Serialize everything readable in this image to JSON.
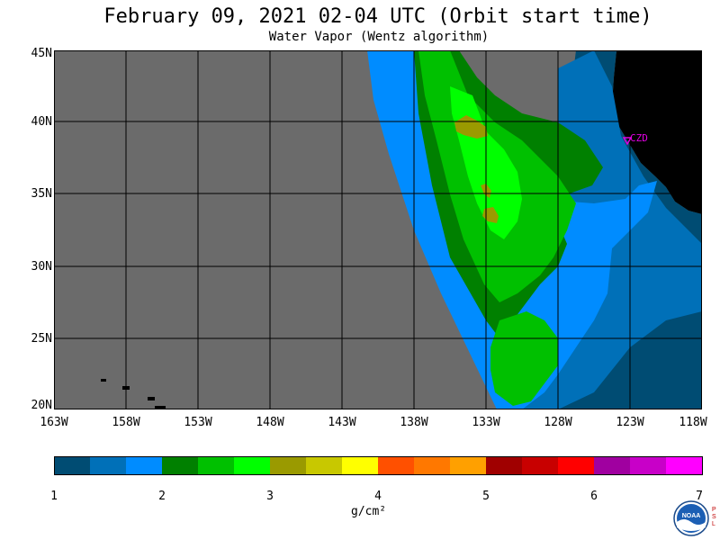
{
  "title": "February 09, 2021  02-04 UTC  (Orbit start time)",
  "subtitle": "Water Vapor (Wentz algorithm)",
  "map": {
    "lat_labels": [
      "45N",
      "40N",
      "35N",
      "30N",
      "25N",
      "20N"
    ],
    "lon_labels": [
      "163W",
      "158W",
      "153W",
      "148W",
      "143W",
      "138W",
      "133W",
      "128W",
      "123W",
      "118W"
    ],
    "station_label": "CZD",
    "station_color": "#e000e0",
    "no_data_color": "#6b6b6b",
    "land_color": "#000000"
  },
  "colorbar": {
    "colors": [
      "#004c73",
      "#0070b8",
      "#008cff",
      "#008000",
      "#00c000",
      "#00ff00",
      "#9a9a00",
      "#c8c800",
      "#ffff00",
      "#ff5000",
      "#ff7800",
      "#ffa000",
      "#a00000",
      "#c80000",
      "#ff0000",
      "#a000a0",
      "#c800c8",
      "#ff00ff"
    ],
    "ticks": [
      "1",
      "2",
      "3",
      "4",
      "5",
      "6",
      "7"
    ],
    "unit": "g/cm²"
  },
  "logo": {
    "text": "NOAA",
    "side_letters": "PSL"
  }
}
